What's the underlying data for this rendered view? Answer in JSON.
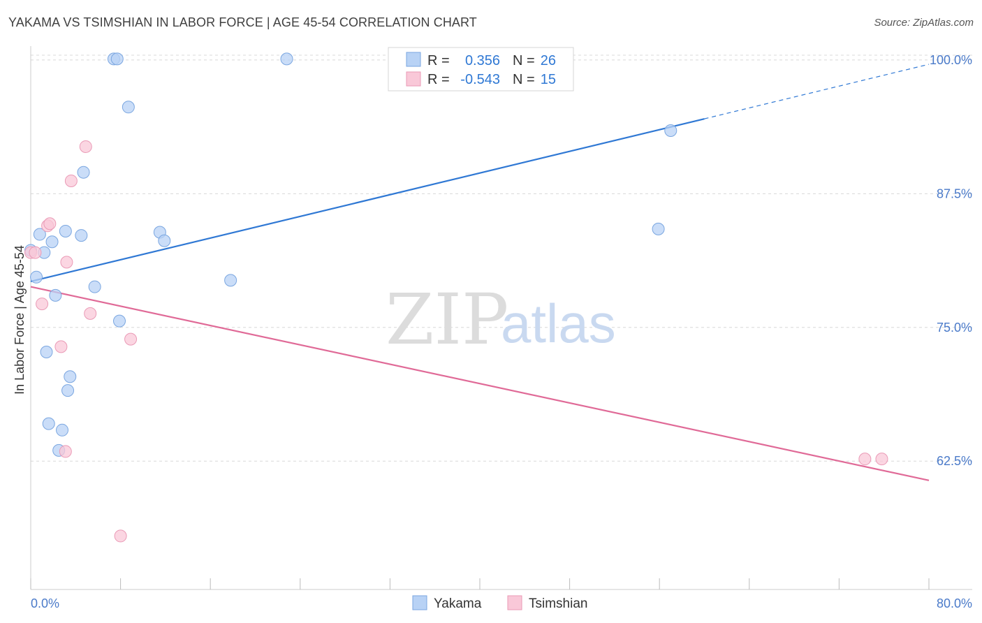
{
  "title": "YAKAMA VS TSIMSHIAN IN LABOR FORCE | AGE 45-54 CORRELATION CHART",
  "source": "Source: ZipAtlas.com",
  "watermark": {
    "zip": "ZIP",
    "atlas": "atlas"
  },
  "colors": {
    "yakama_fill": "#b8d2f5",
    "yakama_stroke": "#7aa6e0",
    "yakama_line": "#2f78d4",
    "tsimshian_fill": "#f9c8d8",
    "tsimshian_stroke": "#ea9ab6",
    "tsimshian_line": "#e06a97",
    "axis_text": "#4a7ac9",
    "grid": "#d8d8d8"
  },
  "legend": {
    "rows": [
      {
        "r_label": "R =",
        "r_value": "0.356",
        "n_label": "N =",
        "n_value": "26",
        "series": "yakama"
      },
      {
        "r_label": "R =",
        "r_value": "-0.543",
        "n_label": "N =",
        "n_value": "15",
        "series": "tsimshian"
      }
    ]
  },
  "chart_data": {
    "type": "scatter",
    "title": "YAKAMA VS TSIMSHIAN IN LABOR FORCE | AGE 45-54 CORRELATION CHART",
    "xlabel": "",
    "ylabel": "In Labor Force | Age 45-54",
    "xlim": [
      0,
      80
    ],
    "ylim": [
      50.5,
      101.3
    ],
    "x_tick_labels": [
      "0.0%",
      "80.0%"
    ],
    "y_ticks": [
      62.5,
      75.0,
      87.5,
      100.0
    ],
    "y_tick_labels": [
      "62.5%",
      "75.0%",
      "87.5%",
      "100.0%"
    ],
    "grid": true,
    "series": [
      {
        "name": "Yakama",
        "key": "yakama",
        "points": [
          [
            0.0,
            82.2
          ],
          [
            0.5,
            79.7
          ],
          [
            0.8,
            83.7
          ],
          [
            1.2,
            82.0
          ],
          [
            1.4,
            72.7
          ],
          [
            1.6,
            66.0
          ],
          [
            1.9,
            83.0
          ],
          [
            2.2,
            78.0
          ],
          [
            2.5,
            63.5
          ],
          [
            2.8,
            65.4
          ],
          [
            3.1,
            84.0
          ],
          [
            3.3,
            69.1
          ],
          [
            3.5,
            70.4
          ],
          [
            4.5,
            83.6
          ],
          [
            4.7,
            89.5
          ],
          [
            5.7,
            78.8
          ],
          [
            7.4,
            100.1
          ],
          [
            7.7,
            100.1
          ],
          [
            7.9,
            75.6
          ],
          [
            8.7,
            95.6
          ],
          [
            11.5,
            83.9
          ],
          [
            11.9,
            83.1
          ],
          [
            17.8,
            79.4
          ],
          [
            22.8,
            100.1
          ],
          [
            55.9,
            84.2
          ],
          [
            57.0,
            93.4
          ]
        ],
        "trend": {
          "x0": 0.0,
          "y0": 79.3,
          "x1": 60.0,
          "y1": 94.5,
          "dash_x1": 80.0,
          "dash_y1": 99.6
        }
      },
      {
        "name": "Tsimshian",
        "key": "tsimshian",
        "points": [
          [
            0.0,
            82.0
          ],
          [
            0.4,
            82.0
          ],
          [
            1.0,
            77.2
          ],
          [
            1.5,
            84.5
          ],
          [
            1.7,
            84.7
          ],
          [
            2.7,
            73.2
          ],
          [
            3.2,
            81.1
          ],
          [
            3.6,
            88.7
          ],
          [
            4.9,
            91.9
          ],
          [
            5.3,
            76.3
          ],
          [
            8.0,
            55.5
          ],
          [
            8.9,
            73.9
          ],
          [
            3.1,
            63.4
          ],
          [
            74.3,
            62.7
          ],
          [
            75.8,
            62.7
          ]
        ],
        "trend": {
          "x0": 0.0,
          "y0": 78.8,
          "x1": 80.0,
          "y1": 60.7
        }
      }
    ]
  },
  "bottom_legend": [
    {
      "label": "Yakama",
      "series": "yakama"
    },
    {
      "label": "Tsimshian",
      "series": "tsimshian"
    }
  ]
}
